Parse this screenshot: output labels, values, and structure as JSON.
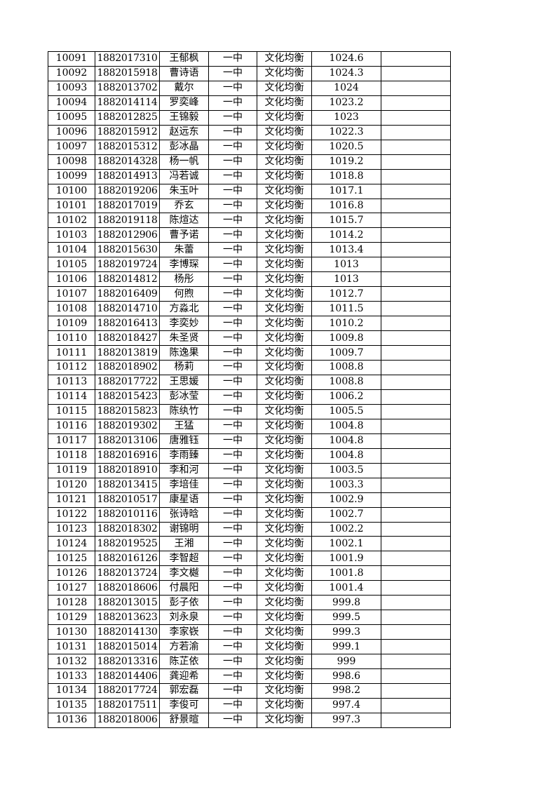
{
  "rows": [
    [
      "10091",
      "1882017310",
      "王郁枫",
      "一中",
      "文化均衡",
      "1024.6",
      ""
    ],
    [
      "10092",
      "1882015918",
      "曹诗语",
      "一中",
      "文化均衡",
      "1024.3",
      ""
    ],
    [
      "10093",
      "1882013702",
      "戴尔",
      "一中",
      "文化均衡",
      "1024",
      ""
    ],
    [
      "10094",
      "1882014114",
      "罗奕峰",
      "一中",
      "文化均衡",
      "1023.2",
      ""
    ],
    [
      "10095",
      "1882012825",
      "王锦毅",
      "一中",
      "文化均衡",
      "1023",
      ""
    ],
    [
      "10096",
      "1882015912",
      "赵远东",
      "一中",
      "文化均衡",
      "1022.3",
      ""
    ],
    [
      "10097",
      "1882015312",
      "彭冰晶",
      "一中",
      "文化均衡",
      "1020.5",
      ""
    ],
    [
      "10098",
      "1882014328",
      "杨一帆",
      "一中",
      "文化均衡",
      "1019.2",
      ""
    ],
    [
      "10099",
      "1882014913",
      "冯若诚",
      "一中",
      "文化均衡",
      "1018.8",
      ""
    ],
    [
      "10100",
      "1882019206",
      "朱玉叶",
      "一中",
      "文化均衡",
      "1017.1",
      ""
    ],
    [
      "10101",
      "1882017019",
      "乔玄",
      "一中",
      "文化均衡",
      "1016.8",
      ""
    ],
    [
      "10102",
      "1882019118",
      "陈煊达",
      "一中",
      "文化均衡",
      "1015.7",
      ""
    ],
    [
      "10103",
      "1882012906",
      "曹予诺",
      "一中",
      "文化均衡",
      "1014.2",
      ""
    ],
    [
      "10104",
      "1882015630",
      "朱蕾",
      "一中",
      "文化均衡",
      "1013.4",
      ""
    ],
    [
      "10105",
      "1882019724",
      "李博琛",
      "一中",
      "文化均衡",
      "1013",
      ""
    ],
    [
      "10106",
      "1882014812",
      "杨彤",
      "一中",
      "文化均衡",
      "1013",
      ""
    ],
    [
      "10107",
      "1882016409",
      "何煦",
      "一中",
      "文化均衡",
      "1012.7",
      ""
    ],
    [
      "10108",
      "1882014710",
      "方淼北",
      "一中",
      "文化均衡",
      "1011.5",
      ""
    ],
    [
      "10109",
      "1882016413",
      "李奕妙",
      "一中",
      "文化均衡",
      "1010.2",
      ""
    ],
    [
      "10110",
      "1882018427",
      "朱圣贤",
      "一中",
      "文化均衡",
      "1009.8",
      ""
    ],
    [
      "10111",
      "1882013819",
      "陈逸果",
      "一中",
      "文化均衡",
      "1009.7",
      ""
    ],
    [
      "10112",
      "1882018902",
      "杨莉",
      "一中",
      "文化均衡",
      "1008.8",
      ""
    ],
    [
      "10113",
      "1882017722",
      "王思媛",
      "一中",
      "文化均衡",
      "1008.8",
      ""
    ],
    [
      "10114",
      "1882015423",
      "彭冰莹",
      "一中",
      "文化均衡",
      "1006.2",
      ""
    ],
    [
      "10115",
      "1882015823",
      "陈纨竹",
      "一中",
      "文化均衡",
      "1005.5",
      ""
    ],
    [
      "10116",
      "1882019302",
      "王猛",
      "一中",
      "文化均衡",
      "1004.8",
      ""
    ],
    [
      "10117",
      "1882013106",
      "唐雅钰",
      "一中",
      "文化均衡",
      "1004.8",
      ""
    ],
    [
      "10118",
      "1882016916",
      "李雨臻",
      "一中",
      "文化均衡",
      "1004.8",
      ""
    ],
    [
      "10119",
      "1882018910",
      "李和河",
      "一中",
      "文化均衡",
      "1003.5",
      ""
    ],
    [
      "10120",
      "1882013415",
      "李培佳",
      "一中",
      "文化均衡",
      "1003.3",
      ""
    ],
    [
      "10121",
      "1882010517",
      "康星语",
      "一中",
      "文化均衡",
      "1002.9",
      ""
    ],
    [
      "10122",
      "1882010116",
      "张诗晗",
      "一中",
      "文化均衡",
      "1002.7",
      ""
    ],
    [
      "10123",
      "1882018302",
      "谢锦明",
      "一中",
      "文化均衡",
      "1002.2",
      ""
    ],
    [
      "10124",
      "1882019525",
      "王湘",
      "一中",
      "文化均衡",
      "1002.1",
      ""
    ],
    [
      "10125",
      "1882016126",
      "李智超",
      "一中",
      "文化均衡",
      "1001.9",
      ""
    ],
    [
      "10126",
      "1882013724",
      "李文樾",
      "一中",
      "文化均衡",
      "1001.8",
      ""
    ],
    [
      "10127",
      "1882018606",
      "付晨阳",
      "一中",
      "文化均衡",
      "1001.4",
      ""
    ],
    [
      "10128",
      "1882013015",
      "彭子依",
      "一中",
      "文化均衡",
      "999.8",
      ""
    ],
    [
      "10129",
      "1882013623",
      "刘永泉",
      "一中",
      "文化均衡",
      "999.5",
      ""
    ],
    [
      "10130",
      "1882014130",
      "李家嵚",
      "一中",
      "文化均衡",
      "999.3",
      ""
    ],
    [
      "10131",
      "1882015014",
      "方若渝",
      "一中",
      "文化均衡",
      "999.1",
      ""
    ],
    [
      "10132",
      "1882013316",
      "陈芷依",
      "一中",
      "文化均衡",
      "999",
      ""
    ],
    [
      "10133",
      "1882014406",
      "龚迎希",
      "一中",
      "文化均衡",
      "998.6",
      ""
    ],
    [
      "10134",
      "1882017724",
      "郭宏磊",
      "一中",
      "文化均衡",
      "998.2",
      ""
    ],
    [
      "10135",
      "1882017511",
      "李俊可",
      "一中",
      "文化均衡",
      "997.4",
      ""
    ],
    [
      "10136",
      "1882018006",
      "舒景暄",
      "一中",
      "文化均衡",
      "997.3",
      ""
    ]
  ]
}
